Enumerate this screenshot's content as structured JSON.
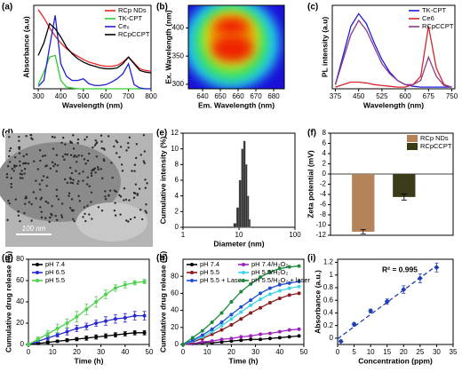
{
  "chart_data": [
    {
      "type": "line",
      "label": "(a)",
      "xlabel": "Wavelength (nm)",
      "ylabel": "Absorbance (a.u)",
      "x": [
        300,
        325,
        350,
        375,
        400,
        425,
        450,
        475,
        500,
        525,
        550,
        575,
        600,
        625,
        650,
        675,
        700,
        725,
        750,
        775,
        800
      ],
      "xlim": [
        280,
        800
      ],
      "xticks": [
        300,
        400,
        500,
        600,
        700,
        800
      ],
      "ylim": [
        0,
        1
      ],
      "legend": "upper right",
      "series": [
        {
          "name": "RCp NDs",
          "color": "#e8262a",
          "values": [
            0.95,
            0.85,
            0.73,
            0.63,
            0.55,
            0.48,
            0.43,
            0.39,
            0.35,
            0.32,
            0.3,
            0.28,
            0.27,
            0.27,
            0.28,
            0.32,
            0.38,
            0.31,
            0.24,
            0.22,
            0.21
          ]
        },
        {
          "name": "TK-CPT",
          "color": "#2ecc2e",
          "values": [
            0.05,
            0.2,
            0.38,
            0.4,
            0.1,
            0.02,
            0.01,
            0,
            0,
            0,
            0,
            0,
            0,
            0,
            0,
            0,
            0,
            0,
            0,
            0,
            0
          ]
        },
        {
          "name": "Ce₆",
          "color": "#1f1fd6",
          "values": [
            0.03,
            0.1,
            0.5,
            0.88,
            0.3,
            0.15,
            0.1,
            0.1,
            0.12,
            0.06,
            0.04,
            0.04,
            0.05,
            0.08,
            0.12,
            0.18,
            0.3,
            0.05,
            0.01,
            0,
            0
          ]
        },
        {
          "name": "RCpCCPT",
          "color": "#000000",
          "values": [
            0.4,
            0.55,
            0.78,
            0.72,
            0.62,
            0.5,
            0.42,
            0.36,
            0.32,
            0.29,
            0.27,
            0.25,
            0.24,
            0.24,
            0.25,
            0.3,
            0.38,
            0.3,
            0.22,
            0.2,
            0.19
          ]
        }
      ]
    },
    {
      "type": "heatmap",
      "label": "(b)",
      "xlabel": "Em. Wavelength (nm)",
      "ylabel": "Ex. Wavelength (nm)",
      "xlim": [
        632,
        686
      ],
      "xticks": [
        640,
        650,
        660,
        670,
        680
      ],
      "ylim": [
        292,
        440
      ],
      "yticks": [
        300,
        350,
        400
      ]
    },
    {
      "type": "line",
      "label": "(c)",
      "xlabel": "Wavelength (nm)",
      "ylabel": "PL intensity (a.u)",
      "x": [
        375,
        400,
        425,
        450,
        475,
        500,
        525,
        550,
        575,
        600,
        625,
        650,
        675,
        700,
        725,
        750
      ],
      "xlim": [
        365,
        760
      ],
      "xticks": [
        375,
        450,
        525,
        600,
        675,
        750
      ],
      "ylim": [
        0,
        1
      ],
      "legend": "upper right",
      "series": [
        {
          "name": "TK-CPT",
          "color": "#1d1dd8",
          "values": [
            0.05,
            0.4,
            0.75,
            0.9,
            0.78,
            0.55,
            0.35,
            0.2,
            0.1,
            0.05,
            0.03,
            0.02,
            0.02,
            0.02,
            0.02,
            0.02
          ]
        },
        {
          "name": "Ce6",
          "color": "#d6262a",
          "values": [
            0.02,
            0.05,
            0.08,
            0.08,
            0.07,
            0.05,
            0.04,
            0.03,
            0.02,
            0.02,
            0.05,
            0.15,
            0.75,
            0.25,
            0.05,
            0.02
          ]
        },
        {
          "name": "RCpCCPT",
          "color": "#8e3a8e",
          "values": [
            0.05,
            0.35,
            0.65,
            0.82,
            0.7,
            0.5,
            0.3,
            0.18,
            0.1,
            0.05,
            0.05,
            0.1,
            0.38,
            0.15,
            0.04,
            0.02
          ]
        }
      ]
    },
    {
      "type": "image",
      "label": "(d)",
      "scale_bar": "100 nm"
    },
    {
      "type": "histogram",
      "label": "(e)",
      "xlabel": "Diameter (nm)",
      "ylabel": "Cumulative intensity (%)",
      "bins": [
        8,
        9,
        10,
        11,
        12,
        13,
        14,
        15,
        16
      ],
      "counts": [
        0.5,
        2.5,
        6,
        10,
        11,
        8,
        4,
        1
      ],
      "color": "#333333",
      "log_x": true,
      "xlim": [
        1,
        100
      ],
      "xticks": [
        1,
        10,
        100
      ],
      "ylim": [
        0,
        12
      ],
      "yticks": [
        0,
        2,
        4,
        6,
        8,
        10,
        12
      ]
    },
    {
      "type": "bar",
      "label": "(f)",
      "ylabel": "Zeta potential (mV)",
      "categories": [
        "RCp NDs",
        "RCpCCPT"
      ],
      "values": [
        -11.3,
        -4.5
      ],
      "errors": [
        0.4,
        0.6
      ],
      "colors": [
        "#b5835a",
        "#3b3b1a"
      ],
      "ylim": [
        -12,
        8
      ],
      "yticks": [
        8,
        6,
        4,
        2,
        0,
        -2,
        -4,
        -6,
        -8,
        -10,
        -12
      ],
      "legend": "upper right"
    },
    {
      "type": "line",
      "label": "(g)",
      "xlabel": "Time (h)",
      "ylabel": "Cumulative drug release (%)",
      "markers": true,
      "x": [
        0,
        4,
        8,
        12,
        16,
        20,
        24,
        28,
        32,
        36,
        40,
        44,
        48
      ],
      "xlim": [
        0,
        50
      ],
      "xticks": [
        0,
        10,
        20,
        30,
        40,
        50
      ],
      "ylim": [
        0,
        80
      ],
      "yticks": [
        0,
        20,
        40,
        60,
        80
      ],
      "legend": "upper left",
      "series": [
        {
          "name": "pH 7.4",
          "color": "#000000",
          "values": [
            0,
            1,
            2,
            3,
            4,
            5,
            6,
            7,
            8,
            9,
            10,
            11,
            11
          ],
          "errors": [
            0.5,
            1,
            1,
            1,
            1.5,
            1.5,
            2,
            2,
            2,
            2,
            2,
            2,
            2
          ]
        },
        {
          "name": "pH 6.5",
          "color": "#2a2ad0",
          "values": [
            0,
            3,
            6,
            9,
            12,
            15,
            17,
            20,
            22,
            24,
            25,
            27,
            27
          ],
          "errors": [
            0.5,
            1,
            2,
            2,
            3,
            3,
            3,
            3,
            4,
            4,
            4,
            4,
            4
          ]
        },
        {
          "name": "pH 5.5",
          "color": "#4cd44c",
          "values": [
            0,
            5,
            10,
            15,
            20,
            26,
            33,
            40,
            47,
            53,
            56,
            58,
            59
          ],
          "errors": [
            0.5,
            2,
            3,
            4,
            4,
            5,
            5,
            5,
            4,
            3,
            3,
            2,
            2
          ]
        }
      ]
    },
    {
      "type": "line",
      "label": "(h)",
      "xlabel": "Time (h)",
      "ylabel": "Cumulative drug release (%)",
      "markers": true,
      "x": [
        0,
        4,
        8,
        12,
        16,
        20,
        24,
        28,
        32,
        36,
        40,
        44,
        48
      ],
      "xlim": [
        0,
        50
      ],
      "xticks": [
        0,
        10,
        20,
        30,
        40,
        50
      ],
      "ylim": [
        0,
        100
      ],
      "yticks": [
        0,
        20,
        40,
        60,
        80
      ],
      "legend": "upper left",
      "legend_columns": 2,
      "series": [
        {
          "name": "pH 7.4",
          "color": "#000000",
          "values": [
            0,
            1,
            2,
            2,
            3,
            4,
            5,
            6,
            6,
            7,
            8,
            9,
            10
          ]
        },
        {
          "name": "pH 7.4/H₂O₂",
          "color": "#a020c0",
          "values": [
            0,
            1,
            3,
            4,
            6,
            7,
            9,
            10,
            12,
            13,
            15,
            17,
            18
          ]
        },
        {
          "name": "pH 5.5",
          "color": "#8b1a1a",
          "values": [
            0,
            3,
            7,
            12,
            17,
            23,
            30,
            37,
            43,
            49,
            54,
            58,
            60
          ]
        },
        {
          "name": "pH 5.5/H₂O₂",
          "color": "#3fd6e6",
          "values": [
            0,
            4,
            9,
            15,
            22,
            30,
            38,
            46,
            53,
            59,
            63,
            66,
            68
          ]
        },
        {
          "name": "pH 5.5 + Laser",
          "color": "#1f4fd0",
          "values": [
            0,
            5,
            11,
            18,
            26,
            35,
            44,
            52,
            60,
            66,
            70,
            72,
            74
          ]
        },
        {
          "name": "pH 5.5/H₂O₂ + laser",
          "color": "#1a8a3a",
          "values": [
            0,
            8,
            16,
            26,
            37,
            50,
            62,
            71,
            79,
            85,
            89,
            91,
            92
          ]
        }
      ]
    },
    {
      "type": "scatter",
      "label": "(i)",
      "xlabel": "Concentration (ppm)",
      "ylabel": "Absorbance (a.u.)",
      "annotation": "R² = 0.995",
      "x": [
        1,
        5,
        10,
        15,
        20,
        25,
        30
      ],
      "values": [
        -0.05,
        0.22,
        0.43,
        0.58,
        0.77,
        0.95,
        1.12
      ],
      "errors": [
        0.02,
        0.03,
        0.03,
        0.04,
        0.06,
        0.07,
        0.07
      ],
      "color": "#1f3fb0",
      "xlim": [
        0,
        35
      ],
      "xticks": [
        0,
        5,
        10,
        15,
        20,
        25,
        30,
        35
      ],
      "ylim": [
        -0.1,
        1.25
      ],
      "yticks": [
        0,
        0.2,
        0.4,
        0.6,
        0.8,
        1,
        1.2
      ]
    }
  ]
}
